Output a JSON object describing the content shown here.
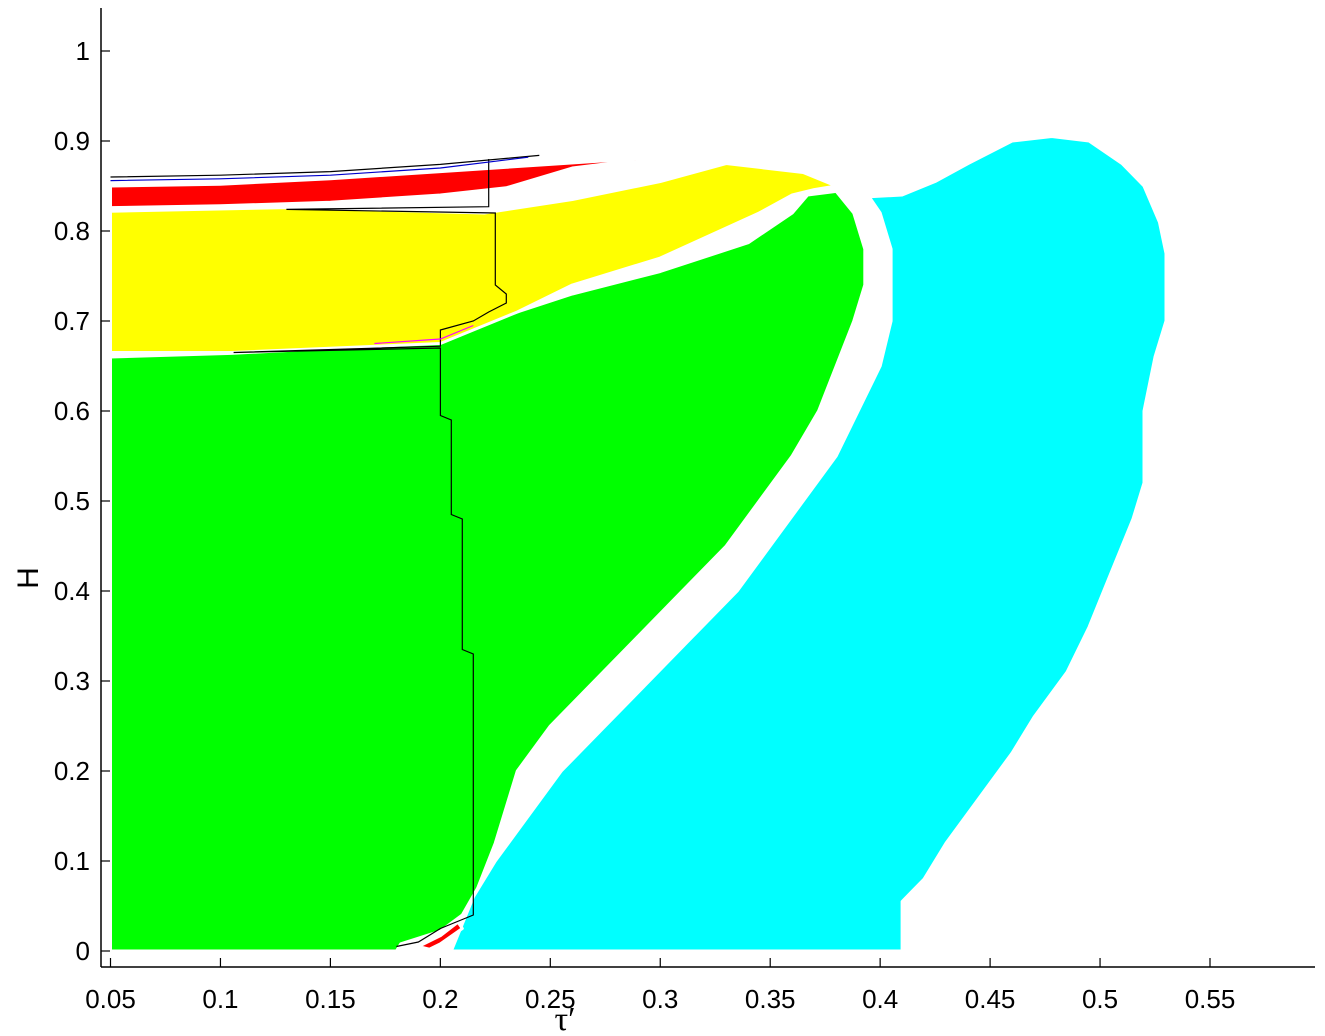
{
  "chart_data": {
    "type": "area",
    "title": "",
    "xlabel": "τ′",
    "ylabel": "H",
    "xlim": [
      0.045,
      0.6
    ],
    "ylim": [
      -0.015,
      1.05
    ],
    "grid": false,
    "x_ticks": [
      "0.05",
      "0.1",
      "0.15",
      "0.2",
      "0.25",
      "0.3",
      "0.35",
      "0.4",
      "0.45",
      "0.5",
      "0.55"
    ],
    "y_ticks": [
      "0",
      "0.1",
      "0.2",
      "0.3",
      "0.4",
      "0.5",
      "0.6",
      "0.7",
      "0.8",
      "0.9",
      "1"
    ],
    "colors": {
      "green": "#00ee00",
      "cyan": "#00ffff",
      "yellow": "#ffff00",
      "red": "#ff0000",
      "boundary": "#000000",
      "blue_line": "#0000cc",
      "magenta_line": "#ff00ff"
    },
    "regions": [
      {
        "color": "#00ff00",
        "points": [
          [
            0.05,
            0.0
          ],
          [
            0.05,
            0.66
          ],
          [
            0.105,
            0.664
          ],
          [
            0.2,
            0.676
          ],
          [
            0.215,
            0.694
          ],
          [
            0.235,
            0.71
          ],
          [
            0.26,
            0.73
          ],
          [
            0.3,
            0.755
          ],
          [
            0.34,
            0.787
          ],
          [
            0.36,
            0.82
          ],
          [
            0.367,
            0.84
          ],
          [
            0.38,
            0.844
          ],
          [
            0.388,
            0.82
          ],
          [
            0.393,
            0.78
          ],
          [
            0.393,
            0.74
          ],
          [
            0.388,
            0.7
          ],
          [
            0.38,
            0.65
          ],
          [
            0.372,
            0.6
          ],
          [
            0.36,
            0.55
          ],
          [
            0.345,
            0.5
          ],
          [
            0.33,
            0.45
          ],
          [
            0.31,
            0.4
          ],
          [
            0.29,
            0.35
          ],
          [
            0.27,
            0.3
          ],
          [
            0.25,
            0.25
          ],
          [
            0.235,
            0.2
          ],
          [
            0.225,
            0.12
          ],
          [
            0.217,
            0.07
          ],
          [
            0.21,
            0.04
          ],
          [
            0.2,
            0.022
          ],
          [
            0.182,
            0.008
          ],
          [
            0.18,
            0.0
          ]
        ]
      },
      {
        "color": "#00ffff",
        "points": [
          [
            0.205,
            0.0
          ],
          [
            0.41,
            0.0
          ],
          [
            0.41,
            0.055
          ],
          [
            0.42,
            0.08
          ],
          [
            0.43,
            0.12
          ],
          [
            0.445,
            0.17
          ],
          [
            0.46,
            0.22
          ],
          [
            0.47,
            0.26
          ],
          [
            0.485,
            0.31
          ],
          [
            0.495,
            0.36
          ],
          [
            0.505,
            0.42
          ],
          [
            0.515,
            0.48
          ],
          [
            0.52,
            0.52
          ],
          [
            0.52,
            0.6
          ],
          [
            0.525,
            0.66
          ],
          [
            0.53,
            0.7
          ],
          [
            0.53,
            0.775
          ],
          [
            0.527,
            0.81
          ],
          [
            0.52,
            0.85
          ],
          [
            0.51,
            0.875
          ],
          [
            0.495,
            0.9
          ],
          [
            0.478,
            0.905
          ],
          [
            0.46,
            0.9
          ],
          [
            0.44,
            0.875
          ],
          [
            0.425,
            0.855
          ],
          [
            0.41,
            0.84
          ],
          [
            0.395,
            0.838
          ],
          [
            0.4,
            0.82
          ],
          [
            0.405,
            0.78
          ],
          [
            0.405,
            0.7
          ],
          [
            0.4,
            0.65
          ],
          [
            0.39,
            0.6
          ],
          [
            0.38,
            0.55
          ],
          [
            0.365,
            0.5
          ],
          [
            0.35,
            0.45
          ],
          [
            0.335,
            0.4
          ],
          [
            0.315,
            0.35
          ],
          [
            0.295,
            0.3
          ],
          [
            0.275,
            0.25
          ],
          [
            0.255,
            0.2
          ],
          [
            0.24,
            0.15
          ],
          [
            0.225,
            0.1
          ],
          [
            0.215,
            0.06
          ],
          [
            0.21,
            0.03
          ]
        ]
      },
      {
        "color": "#ffff00",
        "points": [
          [
            0.05,
            0.665
          ],
          [
            0.05,
            0.822
          ],
          [
            0.13,
            0.826
          ],
          [
            0.22,
            0.82
          ],
          [
            0.26,
            0.835
          ],
          [
            0.3,
            0.855
          ],
          [
            0.33,
            0.875
          ],
          [
            0.365,
            0.865
          ],
          [
            0.38,
            0.85
          ],
          [
            0.37,
            0.846
          ],
          [
            0.36,
            0.84
          ],
          [
            0.345,
            0.82
          ],
          [
            0.3,
            0.77
          ],
          [
            0.26,
            0.74
          ],
          [
            0.235,
            0.71
          ],
          [
            0.215,
            0.69
          ],
          [
            0.2,
            0.675
          ],
          [
            0.105,
            0.665
          ]
        ]
      },
      {
        "color": "#ff0000",
        "points": [
          [
            0.05,
            0.826
          ],
          [
            0.05,
            0.85
          ],
          [
            0.1,
            0.852
          ],
          [
            0.15,
            0.858
          ],
          [
            0.2,
            0.866
          ],
          [
            0.25,
            0.874
          ],
          [
            0.3,
            0.882
          ],
          [
            0.26,
            0.87
          ],
          [
            0.23,
            0.848
          ],
          [
            0.2,
            0.84
          ],
          [
            0.15,
            0.832
          ],
          [
            0.1,
            0.828
          ]
        ]
      },
      {
        "color": "#ff0000",
        "points": [
          [
            0.19,
            0.005
          ],
          [
            0.2,
            0.017
          ],
          [
            0.208,
            0.032
          ],
          [
            0.21,
            0.025
          ],
          [
            0.2,
            0.008
          ],
          [
            0.195,
            0.002
          ]
        ]
      }
    ],
    "boundary_lines": [
      {
        "color": "#000000",
        "points": [
          [
            0.18,
            0.005
          ],
          [
            0.19,
            0.01
          ],
          [
            0.2,
            0.025
          ],
          [
            0.205,
            0.03
          ],
          [
            0.215,
            0.04
          ],
          [
            0.215,
            0.33
          ],
          [
            0.21,
            0.335
          ],
          [
            0.21,
            0.48
          ],
          [
            0.205,
            0.485
          ],
          [
            0.205,
            0.59
          ],
          [
            0.2,
            0.595
          ],
          [
            0.2,
            0.67
          ],
          [
            0.106,
            0.665
          ],
          [
            0.2,
            0.672
          ],
          [
            0.2,
            0.69
          ],
          [
            0.215,
            0.7
          ],
          [
            0.222,
            0.71
          ],
          [
            0.23,
            0.72
          ],
          [
            0.23,
            0.73
          ],
          [
            0.225,
            0.74
          ],
          [
            0.225,
            0.82
          ],
          [
            0.13,
            0.824
          ],
          [
            0.222,
            0.827
          ],
          [
            0.222,
            0.88
          ]
        ]
      },
      {
        "color": "#000000",
        "points": [
          [
            0.05,
            0.86
          ],
          [
            0.1,
            0.862
          ],
          [
            0.15,
            0.866
          ],
          [
            0.2,
            0.874
          ],
          [
            0.245,
            0.884
          ]
        ]
      },
      {
        "color": "#0000cc",
        "points": [
          [
            0.05,
            0.856
          ],
          [
            0.1,
            0.858
          ],
          [
            0.15,
            0.862
          ],
          [
            0.2,
            0.87
          ],
          [
            0.24,
            0.882
          ]
        ]
      },
      {
        "color": "#ff00ff",
        "points": [
          [
            0.17,
            0.675
          ],
          [
            0.2,
            0.68
          ],
          [
            0.215,
            0.695
          ]
        ]
      }
    ]
  }
}
